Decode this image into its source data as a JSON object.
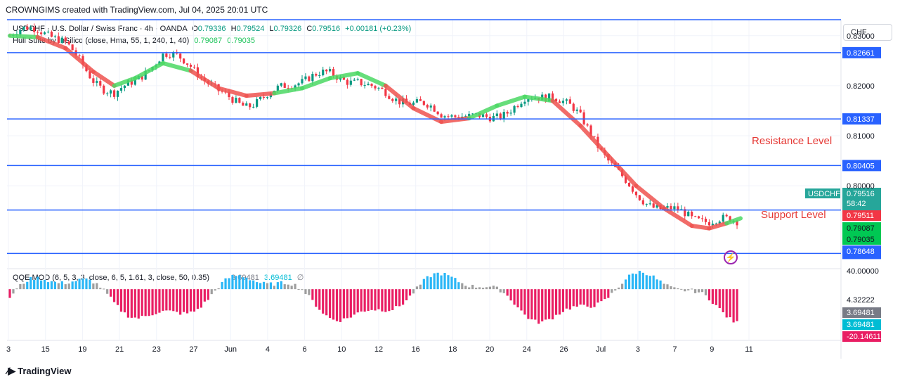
{
  "header": "CROWNGIMS created with TradingView.com, Jul 04, 2025 20:01 UTC",
  "symbol": {
    "title": "USDCHF · U.S. Dollar / Swiss Franc · 4h · OANDA",
    "o_label": "O",
    "o": "0.79336",
    "h_label": "H",
    "h": "0.79524",
    "l_label": "L",
    "l": "0.79326",
    "c_label": "C",
    "c": "0.79516",
    "change": "+0.00181 (+0.23%)"
  },
  "hull": {
    "label": "Hull Suite by InSilico (close, Hma, 55, 1, 240, 1, 40)",
    "v1": "0.79087",
    "v2": "0.79035"
  },
  "currency": "CHF",
  "annotations": {
    "resistance": "Resistance Level",
    "support": "Support Level"
  },
  "qqe": {
    "label": "QQE MOD (6, 5, 3, 3, close, 6, 5, 1.61, 3, close, 50, 0.35)",
    "v1": "3.69481",
    "v2": "3.69481",
    "v3": "∅"
  },
  "footer": {
    "brand": "TradingView"
  },
  "chart_data": {
    "type": "candlestick",
    "price_axis_ticks": [
      "0.83000",
      "0.82000",
      "0.81000",
      "0.80000"
    ],
    "ylim": [
      0.784,
      0.8332
    ],
    "levels": [
      {
        "label": "0.82661",
        "value": 0.82661
      },
      {
        "label": "0.81337",
        "value": 0.81337
      },
      {
        "label": "0.80405",
        "value": 0.80405
      },
      {
        "label": "0.79516",
        "value": 0.79516
      },
      {
        "label": "0.78648",
        "value": 0.78648
      }
    ],
    "price_labels": [
      {
        "text": "USDCHF",
        "color": "#26a69a"
      },
      {
        "text": "0.79516",
        "color": "#26a69a"
      },
      {
        "text": "58:42",
        "color": "#26a69a"
      },
      {
        "text": "0.79511",
        "color": "#ffffff"
      },
      {
        "text": "0.79087",
        "color": "#00c853"
      },
      {
        "text": "0.79035",
        "color": "#00c853"
      },
      {
        "text": "0.78648",
        "color": "#2962ff"
      }
    ],
    "x_ticks": [
      "3",
      "15",
      "19",
      "21",
      "23",
      "27",
      "Jun",
      "4",
      "6",
      "10",
      "12",
      "16",
      "18",
      "20",
      "24",
      "26",
      "Jul",
      "3",
      "7",
      "9",
      "11"
    ],
    "hull_points": [
      [
        0,
        0.83
      ],
      [
        8,
        0.8297
      ],
      [
        16,
        0.8275
      ],
      [
        24,
        0.8228
      ],
      [
        30,
        0.82
      ],
      [
        36,
        0.8215
      ],
      [
        44,
        0.8245
      ],
      [
        52,
        0.823
      ],
      [
        60,
        0.8195
      ],
      [
        68,
        0.818
      ],
      [
        76,
        0.8185
      ],
      [
        84,
        0.8195
      ],
      [
        92,
        0.8215
      ],
      [
        100,
        0.8225
      ],
      [
        108,
        0.82
      ],
      [
        116,
        0.8155
      ],
      [
        124,
        0.8128
      ],
      [
        132,
        0.8135
      ],
      [
        140,
        0.816
      ],
      [
        148,
        0.8178
      ],
      [
        156,
        0.817
      ],
      [
        164,
        0.812
      ],
      [
        172,
        0.806
      ],
      [
        180,
        0.8
      ],
      [
        188,
        0.7955
      ],
      [
        196,
        0.792
      ],
      [
        201,
        0.7915
      ],
      [
        206,
        0.7925
      ],
      [
        210,
        0.7935
      ]
    ],
    "hull_colors": [
      "#4cd964",
      "#ef5350",
      "#ef5350",
      "#ef5350",
      "#4cd964",
      "#4cd964",
      "#4cd964",
      "#ef5350",
      "#ef5350",
      "#ef5350",
      "#4cd964",
      "#4cd964",
      "#4cd964",
      "#4cd964",
      "#ef5350",
      "#ef5350",
      "#ef5350",
      "#4cd964",
      "#4cd964",
      "#4cd964",
      "#ef5350",
      "#ef5350",
      "#ef5350",
      "#ef5350",
      "#ef5350",
      "#ef5350",
      "#ef5350",
      "#4cd964"
    ],
    "qqe_axis": [
      "40.00000",
      "4.32222"
    ],
    "qqe_labels": [
      {
        "text": "3.69481",
        "color": "#787b86"
      },
      {
        "text": "3.69481",
        "color": "#00bcd4"
      },
      {
        "text": "-20.14611",
        "color": "#e91e63"
      }
    ],
    "qqe_ylim": [
      -25,
      10
    ],
    "colors": {
      "up": "#089981",
      "down": "#f23645",
      "level": "#2962ff",
      "qqe_up": "#29b6f6",
      "qqe_down": "#e91e63",
      "qqe_neutral": "#9e9e9e"
    }
  }
}
